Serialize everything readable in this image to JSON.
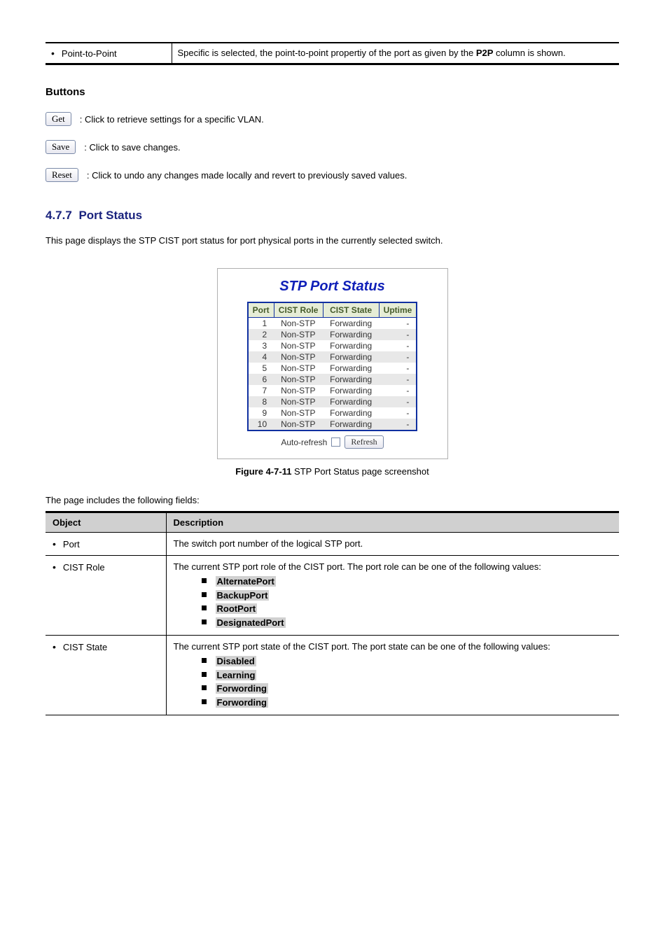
{
  "ptp": {
    "label": "Point-to-Point",
    "desc_prefix": "Specific is selected, the point-to-point propertiy of the port as given by the ",
    "desc_bold": "P2P",
    "desc_suffix": " column is shown."
  },
  "buttons": {
    "heading": "Buttons",
    "get": "Get",
    "get_desc": ": Click to retrieve settings for a specific VLAN.",
    "save": "Save",
    "save_desc": ": Click to save changes.",
    "reset": "Reset",
    "reset_desc": ": Click to undo any changes made locally and revert to previously saved values."
  },
  "stp_section": {
    "number": "4.7.7",
    "title": "Port Status",
    "desc": "This page displays the STP CIST port status for port physical ports in the currently selected switch.",
    "figure_title": "STP Port Status",
    "columns": [
      "Port",
      "CIST Role",
      "CIST State",
      "Uptime"
    ],
    "rows": [
      {
        "port": "1",
        "role": "Non-STP",
        "state": "Forwarding",
        "uptime": "-"
      },
      {
        "port": "2",
        "role": "Non-STP",
        "state": "Forwarding",
        "uptime": "-"
      },
      {
        "port": "3",
        "role": "Non-STP",
        "state": "Forwarding",
        "uptime": "-"
      },
      {
        "port": "4",
        "role": "Non-STP",
        "state": "Forwarding",
        "uptime": "-"
      },
      {
        "port": "5",
        "role": "Non-STP",
        "state": "Forwarding",
        "uptime": "-"
      },
      {
        "port": "6",
        "role": "Non-STP",
        "state": "Forwarding",
        "uptime": "-"
      },
      {
        "port": "7",
        "role": "Non-STP",
        "state": "Forwarding",
        "uptime": "-"
      },
      {
        "port": "8",
        "role": "Non-STP",
        "state": "Forwarding",
        "uptime": "-"
      },
      {
        "port": "9",
        "role": "Non-STP",
        "state": "Forwarding",
        "uptime": "-"
      },
      {
        "port": "10",
        "role": "Non-STP",
        "state": "Forwarding",
        "uptime": "-"
      }
    ],
    "auto_refresh_label": "Auto-refresh",
    "refresh_label": "Refresh",
    "caption_prefix": "Figure 4-7-11",
    "caption_text": " STP Port Status page screenshot"
  },
  "terms": {
    "intro": "The page includes the following fields:",
    "header_object": "Object",
    "header_desc": "Description",
    "port": {
      "label": "Port",
      "desc": "The switch port number of the logical STP port."
    },
    "cist_role": {
      "label": "CIST Role",
      "desc": "The current STP port role of the CIST port. The port role can be one of the following values:",
      "items": [
        "AlternatePort",
        "BackupPort",
        "RootPort",
        "DesignatedPort"
      ]
    },
    "cist_state": {
      "label": "CIST State",
      "desc": "The current STP port state of the CIST port. The port state can be one of the following values:",
      "items": [
        "Disabled",
        "Learning",
        "Forwording",
        "Forwording"
      ]
    }
  }
}
